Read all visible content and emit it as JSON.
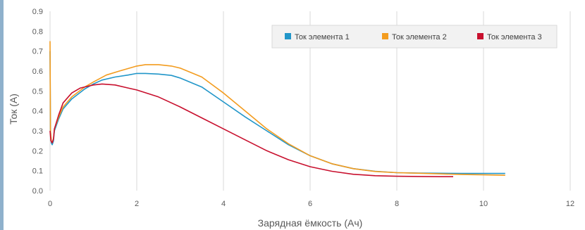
{
  "chart_data": {
    "type": "line",
    "xlabel": "Зарядная ёмкость (Ач)",
    "ylabel": "Ток (А)",
    "xlim": [
      0,
      12
    ],
    "ylim": [
      0,
      0.9
    ],
    "x_ticks": [
      "0",
      "2",
      "4",
      "6",
      "8",
      "10",
      "12"
    ],
    "y_ticks": [
      "0.0",
      "0.1",
      "0.2",
      "0.3",
      "0.4",
      "0.5",
      "0.6",
      "0.7",
      "0.8",
      "0.9"
    ],
    "grid": "vertical",
    "legend_position": "top-right",
    "series": [
      {
        "name": "Ток элемента 1",
        "color": "#2196c9",
        "x": [
          0,
          0.01,
          0.03,
          0.05,
          0.08,
          0.1,
          0.2,
          0.3,
          0.5,
          0.8,
          1.0,
          1.2,
          1.5,
          1.8,
          2.0,
          2.2,
          2.5,
          2.8,
          3.0,
          3.5,
          4.0,
          4.5,
          5.0,
          5.5,
          6.0,
          6.5,
          7.0,
          7.5,
          8.0,
          8.5,
          9.0,
          9.5,
          10.0,
          10.5
        ],
        "y": [
          0.7,
          0.3,
          0.24,
          0.23,
          0.25,
          0.3,
          0.36,
          0.41,
          0.46,
          0.51,
          0.535,
          0.555,
          0.57,
          0.58,
          0.588,
          0.588,
          0.585,
          0.578,
          0.565,
          0.52,
          0.445,
          0.37,
          0.3,
          0.23,
          0.175,
          0.135,
          0.11,
          0.097,
          0.09,
          0.088,
          0.087,
          0.086,
          0.086,
          0.086
        ]
      },
      {
        "name": "Ток элемента 2",
        "color": "#f39c1f",
        "x": [
          0,
          0.01,
          0.03,
          0.05,
          0.08,
          0.1,
          0.2,
          0.3,
          0.5,
          0.8,
          1.0,
          1.3,
          1.6,
          2.0,
          2.2,
          2.5,
          2.8,
          3.0,
          3.5,
          4.0,
          4.5,
          5.0,
          5.5,
          6.0,
          6.5,
          7.0,
          7.5,
          8.0,
          8.5,
          9.0,
          9.5,
          10.0,
          10.5
        ],
        "y": [
          0.75,
          0.3,
          0.25,
          0.24,
          0.26,
          0.31,
          0.37,
          0.42,
          0.47,
          0.52,
          0.545,
          0.58,
          0.6,
          0.625,
          0.632,
          0.632,
          0.625,
          0.615,
          0.57,
          0.49,
          0.4,
          0.31,
          0.235,
          0.175,
          0.135,
          0.11,
          0.096,
          0.09,
          0.087,
          0.084,
          0.081,
          0.079,
          0.077
        ]
      },
      {
        "name": "Ток элемента 3",
        "color": "#c8102e",
        "x": [
          0,
          0.02,
          0.05,
          0.08,
          0.1,
          0.2,
          0.3,
          0.5,
          0.7,
          1.0,
          1.2,
          1.5,
          1.8,
          2.0,
          2.5,
          3.0,
          3.5,
          4.0,
          4.5,
          5.0,
          5.5,
          6.0,
          6.5,
          7.0,
          7.5,
          8.0,
          8.5,
          9.0,
          9.3
        ],
        "y": [
          0.3,
          0.25,
          0.24,
          0.26,
          0.31,
          0.38,
          0.44,
          0.49,
          0.515,
          0.53,
          0.535,
          0.53,
          0.515,
          0.505,
          0.47,
          0.42,
          0.365,
          0.31,
          0.255,
          0.2,
          0.155,
          0.12,
          0.097,
          0.082,
          0.075,
          0.072,
          0.071,
          0.07,
          0.07
        ]
      }
    ]
  }
}
